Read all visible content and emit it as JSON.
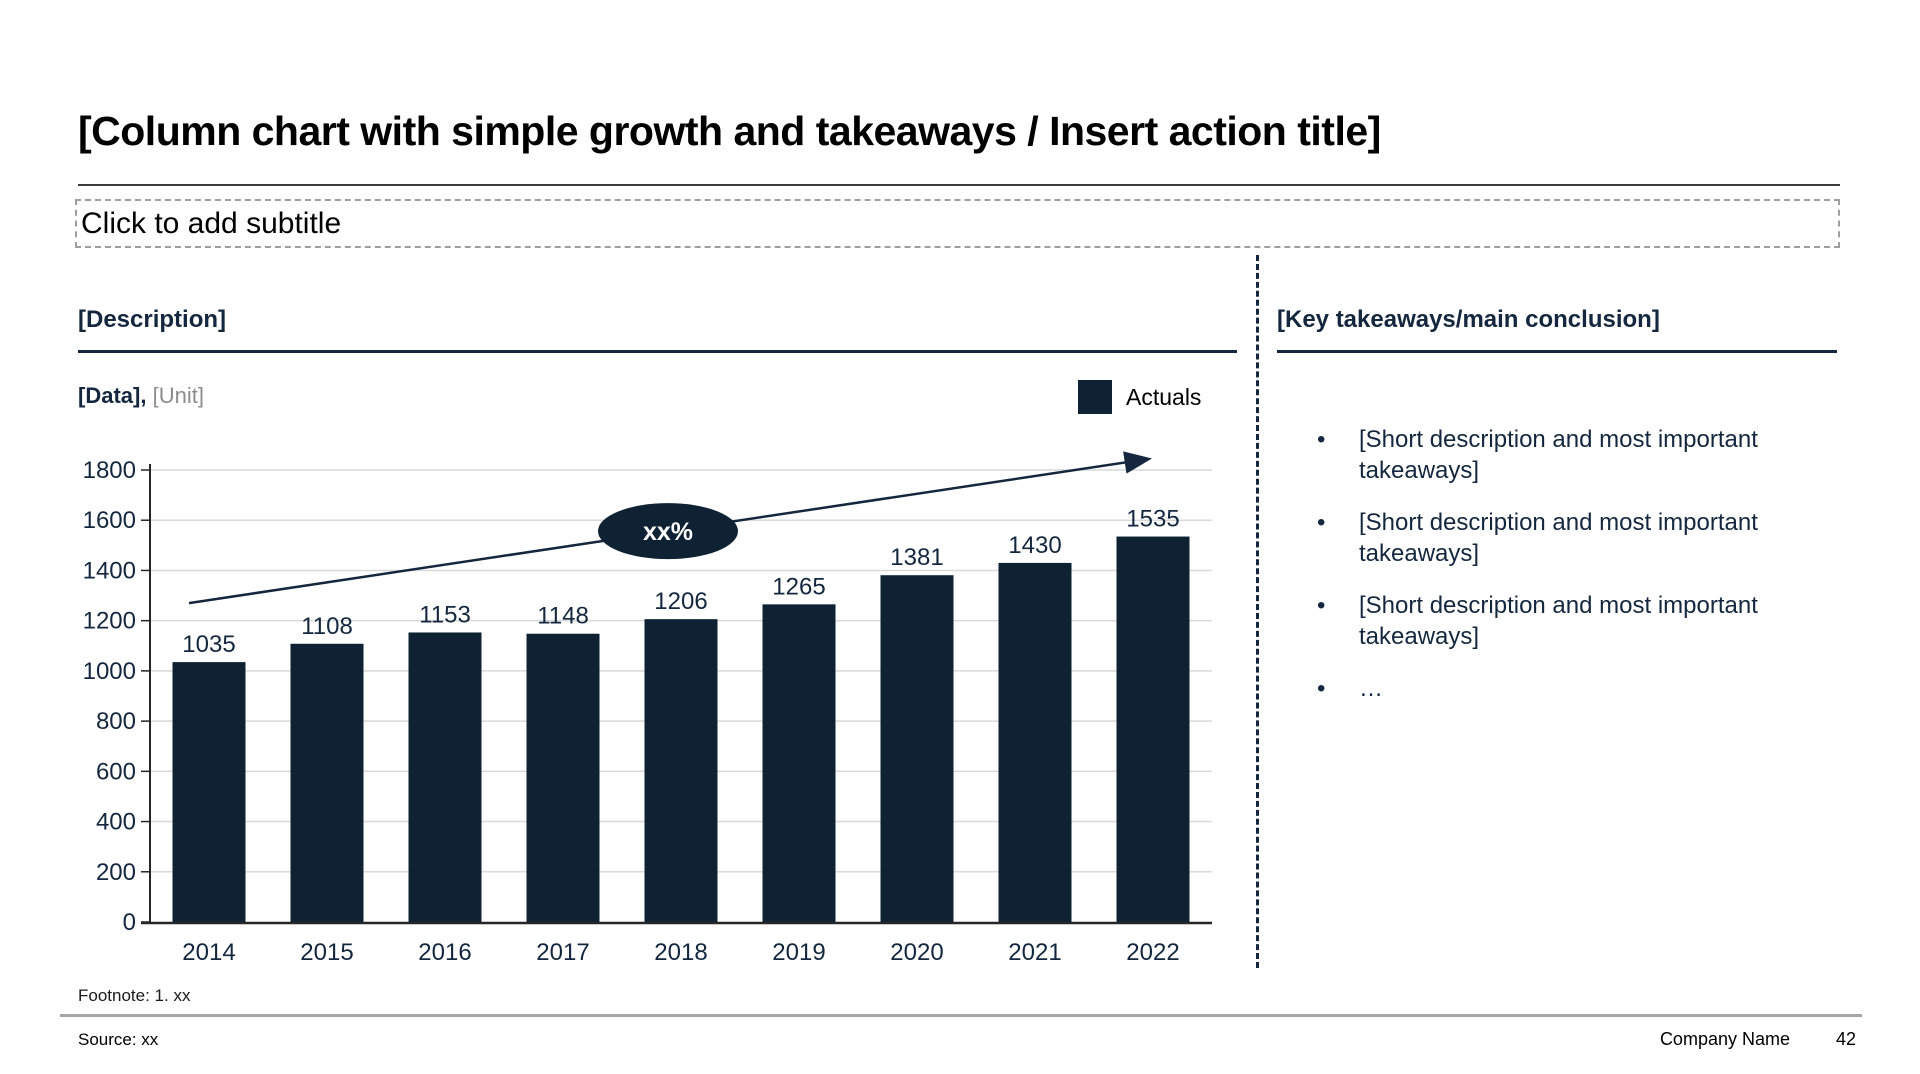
{
  "slide": {
    "title": "[Column chart with simple growth and takeaways / Insert action title]",
    "subtitle_placeholder": "Click to add subtitle",
    "footnote": "Footnote: 1. xx",
    "source": "Source: xx",
    "company_name": "Company Name",
    "page_number": "42"
  },
  "left_panel": {
    "header": "[Description]",
    "data_label": "[Data],",
    "unit_label": "[Unit]",
    "legend": {
      "label": "Actuals",
      "color": "#0e2233"
    }
  },
  "right_panel": {
    "header": "[Key takeaways/main conclusion]",
    "bullets": [
      "[Short description and most important takeaways]",
      "[Short description and most important takeaways]",
      "[Short description and most important takeaways]",
      "…"
    ]
  },
  "chart_data": {
    "type": "bar",
    "title": "",
    "xlabel": "",
    "ylabel": "",
    "categories": [
      "2014",
      "2015",
      "2016",
      "2017",
      "2018",
      "2019",
      "2020",
      "2021",
      "2022"
    ],
    "values": [
      1035,
      1108,
      1153,
      1148,
      1206,
      1265,
      1381,
      1430,
      1535
    ],
    "series_name": "Actuals",
    "ylim": [
      0,
      1800
    ],
    "ytick_step": 200,
    "grid": true,
    "legend_position": "top-right",
    "bar_color": "#0e2233",
    "label_color": "#14273e",
    "grid_color": "#d9d9d9",
    "axis_color": "#262626",
    "trend": {
      "label": "xx%",
      "start_value": 1270,
      "end_value": 1843
    }
  }
}
